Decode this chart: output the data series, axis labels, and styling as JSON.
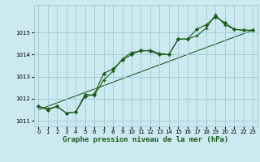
{
  "x": [
    0,
    1,
    2,
    3,
    4,
    5,
    6,
    7,
    8,
    9,
    10,
    11,
    12,
    13,
    14,
    15,
    16,
    17,
    18,
    19,
    20,
    21,
    22,
    23
  ],
  "line1": [
    1011.65,
    1011.55,
    1011.65,
    1011.35,
    1011.4,
    1012.2,
    1012.15,
    1012.85,
    1013.25,
    1013.8,
    1014.1,
    1014.15,
    1014.2,
    1014.05,
    1014.0,
    1014.7,
    1014.7,
    1014.85,
    1015.2,
    1015.8,
    1015.35,
    1015.15,
    1015.1,
    1015.1
  ],
  "line2": [
    1011.65,
    1011.5,
    1011.65,
    1011.35,
    1011.4,
    1012.1,
    1012.2,
    1013.15,
    1013.35,
    1013.75,
    1014.0,
    1014.2,
    1014.15,
    1014.0,
    1014.0,
    1014.7,
    1014.7,
    1015.15,
    1015.35,
    1015.7,
    1015.45,
    1015.15,
    1015.1,
    1015.1
  ],
  "trend_x": [
    0,
    23
  ],
  "trend_y": [
    1011.5,
    1015.1
  ],
  "bg_color": "#cce9f0",
  "grid_color": "#99ccd9",
  "line_color": "#1a5c1a",
  "xlabel": "Graphe pression niveau de la mer (hPa)",
  "ylim": [
    1010.75,
    1016.25
  ],
  "yticks": [
    1011,
    1012,
    1013,
    1014,
    1015
  ],
  "xticks": [
    0,
    1,
    2,
    3,
    4,
    5,
    6,
    7,
    8,
    9,
    10,
    11,
    12,
    13,
    14,
    15,
    16,
    17,
    18,
    19,
    20,
    21,
    22,
    23
  ]
}
